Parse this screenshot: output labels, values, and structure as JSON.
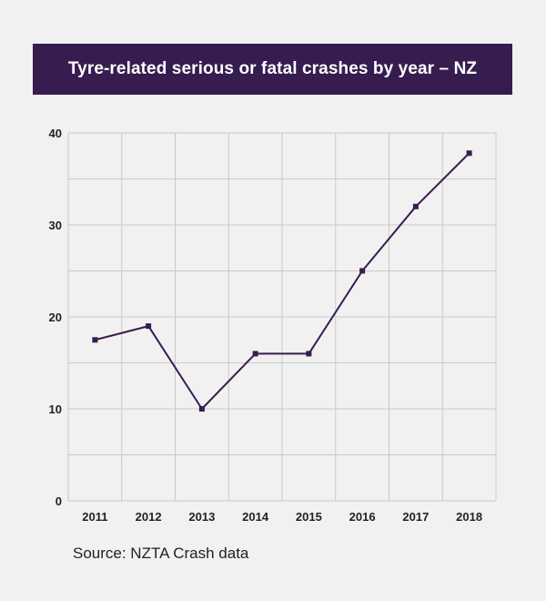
{
  "chart_data": {
    "type": "line",
    "title": "Tyre-related serious or fatal crashes by year – NZ",
    "xlabel": "",
    "ylabel": "",
    "categories": [
      "2011",
      "2012",
      "2013",
      "2014",
      "2015",
      "2016",
      "2017",
      "2018"
    ],
    "series": [
      {
        "values": [
          17.5,
          19,
          10,
          16,
          16,
          25,
          32,
          37.8
        ]
      }
    ],
    "ylim": [
      0,
      40
    ],
    "yticks": [
      0,
      10,
      20,
      30,
      40
    ],
    "grid": true,
    "legend": "none",
    "line_color": "#371d4f",
    "title_bar_color": "#371d4f",
    "grid_color": "#c9c9c9"
  },
  "source_text": "Source:  NZTA Crash data"
}
